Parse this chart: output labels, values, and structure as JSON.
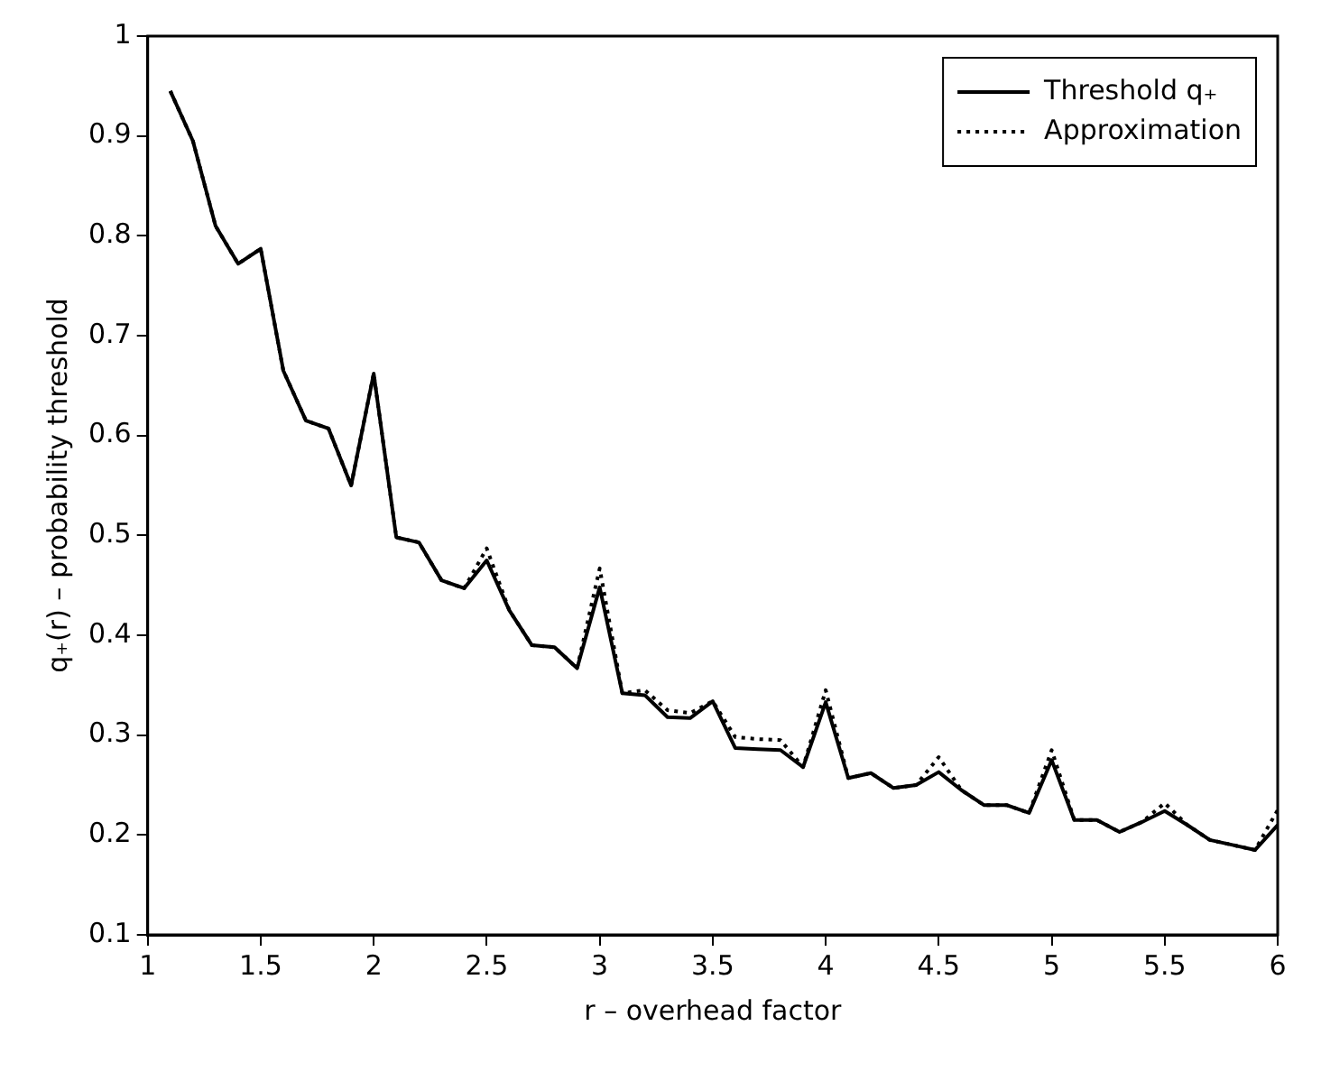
{
  "chart_data": {
    "type": "line",
    "xlabel": "r – overhead factor",
    "ylabel": "q₊(r) – probability threshold",
    "x": [
      1.1,
      1.2,
      1.3,
      1.4,
      1.5,
      1.6,
      1.7,
      1.8,
      1.9,
      2.0,
      2.1,
      2.2,
      2.3,
      2.4,
      2.5,
      2.6,
      2.7,
      2.8,
      2.9,
      3.0,
      3.1,
      3.2,
      3.3,
      3.4,
      3.5,
      3.6,
      3.7,
      3.8,
      3.9,
      4.0,
      4.1,
      4.2,
      4.3,
      4.4,
      4.5,
      4.6,
      4.7,
      4.8,
      4.9,
      5.0,
      5.1,
      5.2,
      5.3,
      5.4,
      5.5,
      5.6,
      5.7,
      5.8,
      5.9,
      6.0
    ],
    "series": [
      {
        "name": "Threshold q₊",
        "color": "#000000",
        "line_style": "solid",
        "values": [
          0.945,
          0.895,
          0.81,
          0.772,
          0.787,
          0.665,
          0.615,
          0.607,
          0.55,
          0.662,
          0.498,
          0.493,
          0.455,
          0.447,
          0.475,
          0.425,
          0.39,
          0.388,
          0.367,
          0.448,
          0.342,
          0.34,
          0.318,
          0.317,
          0.334,
          0.287,
          0.286,
          0.285,
          0.268,
          0.333,
          0.257,
          0.262,
          0.247,
          0.25,
          0.263,
          0.245,
          0.23,
          0.23,
          0.222,
          0.275,
          0.215,
          0.215,
          0.203,
          0.213,
          0.224,
          0.21,
          0.195,
          0.19,
          0.185,
          0.21
        ]
      },
      {
        "name": "Approximation",
        "color": "#000000",
        "line_style": "dotted",
        "values": [
          0.945,
          0.895,
          0.81,
          0.772,
          0.787,
          0.665,
          0.615,
          0.607,
          0.55,
          0.662,
          0.498,
          0.493,
          0.455,
          0.447,
          0.487,
          0.425,
          0.39,
          0.388,
          0.367,
          0.467,
          0.342,
          0.345,
          0.325,
          0.322,
          0.334,
          0.298,
          0.296,
          0.295,
          0.268,
          0.345,
          0.257,
          0.262,
          0.247,
          0.25,
          0.278,
          0.245,
          0.23,
          0.23,
          0.222,
          0.285,
          0.215,
          0.215,
          0.203,
          0.213,
          0.232,
          0.21,
          0.195,
          0.19,
          0.185,
          0.225
        ]
      }
    ],
    "xlim": [
      1,
      6
    ],
    "xticks": [
      1,
      1.5,
      2,
      2.5,
      3,
      3.5,
      4,
      4.5,
      5,
      5.5,
      6
    ],
    "ylim": [
      0.1,
      1
    ],
    "yticks": [
      0.1,
      0.2,
      0.3,
      0.4,
      0.5,
      0.6,
      0.7,
      0.8,
      0.9,
      1
    ],
    "grid": false,
    "legend": "top right",
    "marker": "none"
  }
}
